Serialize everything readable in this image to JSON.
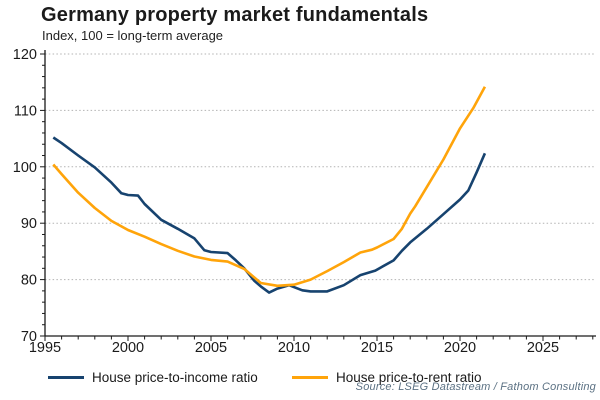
{
  "header": {
    "title": "Germany property market fundamentals",
    "subtitle": "Index, 100 = long-term average"
  },
  "source": "Source: LSEG Datastream / Fathom Consulting",
  "colors": {
    "income_line": "#17436F",
    "rent_line": "#FFA40A",
    "gridline": "#b3b3b3",
    "axis": "#1a1a1a",
    "tick_label": "#1a1a1a",
    "source_text": "#5b7183"
  },
  "legend": {
    "items": [
      {
        "label": "House price-to-income ratio",
        "series": "income_line"
      },
      {
        "label": "House price-to-rent ratio",
        "series": "rent_line"
      }
    ]
  },
  "chart_data": {
    "type": "line",
    "title": "Germany property market fundamentals",
    "subtitle": "Index, 100 = long-term average",
    "xlabel": "",
    "ylabel": "Index, 100 = long-term average",
    "xlim": [
      1995,
      2028.2
    ],
    "ylim": [
      70,
      120
    ],
    "x_ticks": [
      1995,
      2000,
      2005,
      2010,
      2015,
      2020,
      2025
    ],
    "y_ticks": [
      70,
      80,
      90,
      100,
      110,
      120
    ],
    "y_minor_tick_step": 2,
    "grid": "horizontal-dotted",
    "legend_position": "bottom",
    "series": [
      {
        "name": "House price-to-income ratio",
        "key": "income_line",
        "points": [
          [
            1995.5,
            105.2
          ],
          [
            1996,
            104.2
          ],
          [
            1997,
            102.0
          ],
          [
            1998,
            99.9
          ],
          [
            1999,
            97.2
          ],
          [
            1999.6,
            95.3
          ],
          [
            2000,
            95.0
          ],
          [
            2000.6,
            94.9
          ],
          [
            2001,
            93.4
          ],
          [
            2002,
            90.6
          ],
          [
            2003,
            89.0
          ],
          [
            2004,
            87.3
          ],
          [
            2004.6,
            85.2
          ],
          [
            2005,
            84.9
          ],
          [
            2006,
            84.7
          ],
          [
            2006.5,
            83.4
          ],
          [
            2007,
            82.0
          ],
          [
            2007.6,
            79.8
          ],
          [
            2008,
            78.8
          ],
          [
            2008.5,
            77.7
          ],
          [
            2009,
            78.4
          ],
          [
            2009.7,
            79.0
          ],
          [
            2010.5,
            78.1
          ],
          [
            2011,
            77.9
          ],
          [
            2012,
            77.9
          ],
          [
            2013,
            79.0
          ],
          [
            2014,
            80.8
          ],
          [
            2014.9,
            81.6
          ],
          [
            2016,
            83.4
          ],
          [
            2016.5,
            85.1
          ],
          [
            2017,
            86.6
          ],
          [
            2018,
            89.0
          ],
          [
            2019,
            91.6
          ],
          [
            2020,
            94.2
          ],
          [
            2020.5,
            95.8
          ],
          [
            2021,
            99.0
          ],
          [
            2021.5,
            102.4
          ]
        ]
      },
      {
        "name": "House price-to-rent ratio",
        "key": "rent_line",
        "points": [
          [
            1995.5,
            100.4
          ],
          [
            1996,
            98.7
          ],
          [
            1997,
            95.4
          ],
          [
            1998,
            92.7
          ],
          [
            1999,
            90.4
          ],
          [
            2000,
            88.8
          ],
          [
            2001,
            87.6
          ],
          [
            2002,
            86.3
          ],
          [
            2003,
            85.1
          ],
          [
            2004,
            84.1
          ],
          [
            2005,
            83.5
          ],
          [
            2006,
            83.2
          ],
          [
            2007,
            81.9
          ],
          [
            2008,
            79.4
          ],
          [
            2009,
            78.9
          ],
          [
            2010,
            79.1
          ],
          [
            2011,
            80.0
          ],
          [
            2012,
            81.5
          ],
          [
            2013,
            83.1
          ],
          [
            2014,
            84.8
          ],
          [
            2014.7,
            85.3
          ],
          [
            2015,
            85.7
          ],
          [
            2016,
            87.2
          ],
          [
            2016.5,
            89.0
          ],
          [
            2017,
            91.7
          ],
          [
            2017.3,
            93.0
          ],
          [
            2018,
            96.4
          ],
          [
            2019,
            101.3
          ],
          [
            2020,
            106.8
          ],
          [
            2020.8,
            110.4
          ],
          [
            2021.5,
            114.2
          ]
        ]
      }
    ]
  }
}
